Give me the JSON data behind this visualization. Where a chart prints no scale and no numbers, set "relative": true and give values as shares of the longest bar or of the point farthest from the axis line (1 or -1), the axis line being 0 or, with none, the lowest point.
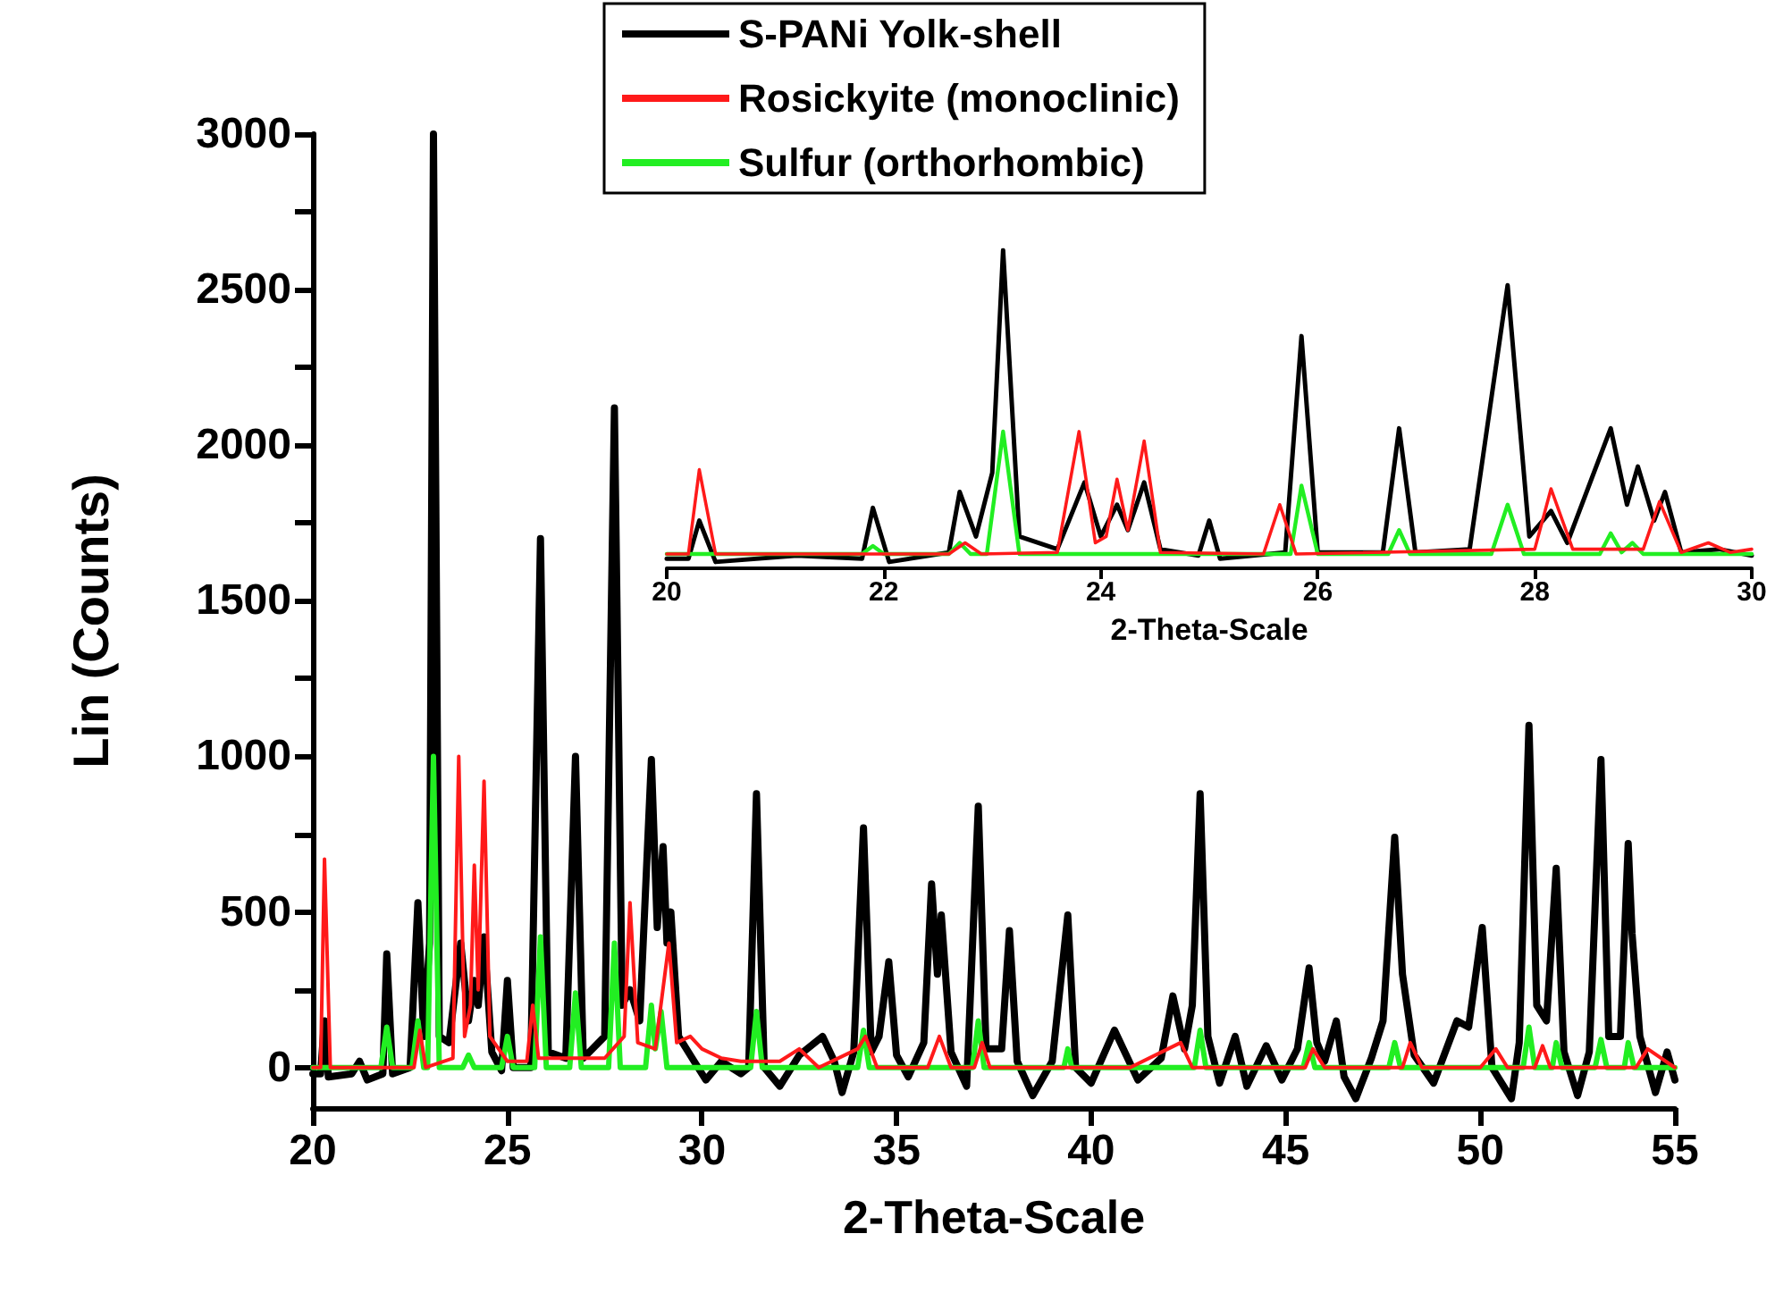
{
  "chart_data": [
    {
      "type": "line",
      "xlabel": "2-Theta-Scale",
      "ylabel": "Lin (Counts)",
      "xlim": [
        20,
        55
      ],
      "xticks": [
        20,
        25,
        30,
        35,
        40,
        45,
        50,
        55
      ],
      "ylim": [
        -130,
        3000
      ],
      "yticks": [
        0,
        {
          "value": 250,
          "label": null
        },
        500,
        {
          "value": 750,
          "label": null
        },
        1000,
        {
          "value": 1250,
          "label": null
        },
        1500,
        {
          "value": 1750,
          "label": null
        },
        2000,
        {
          "value": 2250,
          "label": null
        },
        2500,
        {
          "value": 2750,
          "label": null
        },
        3000
      ],
      "grid": false,
      "legend": "top",
      "marker": "none",
      "line_style": "solid",
      "series": [
        {
          "name": "S-PANi Yolk-shell",
          "color": "#000000",
          "x": [
            20,
            20.2,
            20.3,
            20.4,
            21.0,
            21.2,
            21.4,
            21.8,
            21.9,
            22.05,
            22.5,
            22.7,
            22.85,
            23.0,
            23.1,
            23.25,
            23.5,
            23.8,
            24.0,
            24.15,
            24.25,
            24.4,
            24.6,
            24.85,
            25.0,
            25.15,
            25.6,
            25.85,
            26.05,
            26.5,
            26.75,
            26.95,
            27.5,
            27.75,
            27.95,
            28.15,
            28.4,
            28.7,
            28.85,
            29.0,
            29.1,
            29.2,
            29.4,
            29.8,
            30.1,
            30.5,
            31.0,
            31.2,
            31.4,
            31.6,
            32.0,
            32.5,
            33.1,
            33.4,
            33.6,
            33.9,
            34.15,
            34.35,
            34.55,
            34.8,
            35.0,
            35.3,
            35.7,
            35.9,
            36.05,
            36.15,
            36.4,
            36.8,
            37.1,
            37.3,
            37.7,
            37.9,
            38.1,
            38.5,
            39.0,
            39.4,
            39.6,
            40.0,
            40.6,
            40.9,
            41.2,
            41.8,
            42.1,
            42.4,
            42.6,
            42.8,
            43.0,
            43.3,
            43.7,
            44.0,
            44.5,
            44.9,
            45.3,
            45.6,
            45.8,
            46.0,
            46.3,
            46.5,
            46.8,
            47.2,
            47.5,
            47.8,
            48.0,
            48.3,
            48.8,
            49.4,
            49.7,
            50.05,
            50.3,
            50.8,
            51.0,
            51.25,
            51.45,
            51.7,
            51.95,
            52.15,
            52.5,
            52.8,
            53.1,
            53.3,
            53.6,
            53.8,
            53.9,
            54.1,
            54.5,
            54.8,
            55
          ],
          "values": [
            -20,
            -20,
            150,
            -30,
            -20,
            20,
            -40,
            -20,
            365,
            -20,
            0,
            530,
            100,
            400,
            3000,
            100,
            80,
            400,
            150,
            280,
            200,
            420,
            50,
            -10,
            280,
            0,
            0,
            1700,
            50,
            30,
            1000,
            30,
            100,
            2120,
            200,
            250,
            150,
            990,
            450,
            710,
            400,
            500,
            100,
            20,
            -40,
            20,
            -20,
            0,
            880,
            0,
            -60,
            40,
            100,
            20,
            -80,
            50,
            770,
            50,
            100,
            340,
            40,
            -30,
            80,
            590,
            300,
            490,
            50,
            -60,
            840,
            60,
            60,
            440,
            20,
            -90,
            20,
            490,
            0,
            -50,
            120,
            40,
            -40,
            30,
            230,
            60,
            200,
            880,
            100,
            -50,
            100,
            -60,
            70,
            -40,
            60,
            320,
            80,
            20,
            150,
            -30,
            -100,
            30,
            150,
            740,
            300,
            40,
            -50,
            150,
            130,
            450,
            0,
            -100,
            80,
            1100,
            200,
            150,
            640,
            50,
            -90,
            50,
            990,
            100,
            100,
            720,
            430,
            100,
            -80,
            50,
            -40
          ]
        },
        {
          "name": "Rosickyite (monoclinic)",
          "color": "#ff1a1a",
          "x": [
            20,
            20.2,
            20.3,
            20.45,
            22.6,
            22.75,
            22.9,
            23.6,
            23.75,
            23.9,
            24.05,
            24.15,
            24.25,
            24.4,
            24.55,
            25.0,
            25.5,
            25.65,
            25.8,
            27.5,
            28.0,
            28.15,
            28.35,
            28.8,
            29.15,
            29.35,
            29.7,
            30.0,
            30.5,
            31.0,
            32.0,
            32.5,
            33.0,
            34.0,
            34.2,
            34.5,
            35.8,
            36.1,
            36.4,
            37.0,
            37.2,
            37.4,
            41.0,
            42.3,
            42.6,
            45.5,
            45.7,
            46.0,
            48.0,
            48.2,
            48.5,
            50.0,
            50.4,
            50.7,
            51.4,
            51.6,
            51.8,
            54.0,
            54.3,
            55
          ],
          "values": [
            0,
            0,
            670,
            0,
            0,
            120,
            0,
            30,
            1000,
            100,
            200,
            650,
            250,
            920,
            100,
            20,
            20,
            200,
            30,
            30,
            100,
            530,
            80,
            60,
            400,
            80,
            100,
            60,
            30,
            20,
            20,
            60,
            0,
            60,
            100,
            0,
            0,
            100,
            0,
            0,
            80,
            0,
            0,
            80,
            0,
            0,
            60,
            0,
            0,
            80,
            0,
            0,
            60,
            0,
            0,
            70,
            0,
            0,
            60,
            0
          ]
        },
        {
          "name": "Sulfur (orthorhombic)",
          "color": "#22ee22",
          "x": [
            20,
            21.75,
            21.9,
            22.05,
            22.55,
            22.7,
            22.85,
            22.95,
            23.1,
            23.25,
            23.85,
            24.0,
            24.15,
            24.85,
            25.0,
            25.15,
            25.7,
            25.85,
            26.0,
            26.6,
            26.75,
            26.9,
            27.6,
            27.75,
            27.9,
            28.55,
            28.7,
            28.8,
            28.95,
            29.1,
            31.25,
            31.4,
            31.55,
            34.0,
            34.15,
            34.3,
            36.95,
            37.1,
            37.25,
            39.3,
            39.4,
            39.5,
            42.65,
            42.8,
            42.95,
            45.45,
            45.6,
            45.75,
            47.65,
            47.8,
            47.95,
            51.1,
            51.25,
            51.4,
            51.85,
            51.95,
            52.1,
            52.95,
            53.1,
            53.25,
            53.7,
            53.8,
            53.95,
            55
          ],
          "values": [
            0,
            0,
            130,
            0,
            0,
            150,
            0,
            0,
            1000,
            0,
            0,
            40,
            0,
            0,
            100,
            0,
            0,
            420,
            0,
            0,
            240,
            0,
            0,
            400,
            0,
            0,
            200,
            60,
            180,
            0,
            0,
            180,
            0,
            0,
            120,
            0,
            0,
            150,
            0,
            0,
            60,
            0,
            0,
            120,
            0,
            0,
            80,
            0,
            0,
            80,
            0,
            0,
            130,
            0,
            0,
            80,
            0,
            0,
            90,
            0,
            0,
            80,
            0,
            0
          ]
        }
      ]
    },
    {
      "type": "line",
      "xlabel": "2-Theta-Scale",
      "xlim": [
        20,
        30
      ],
      "xticks": [
        20,
        22,
        24,
        26,
        28,
        30
      ],
      "relative": true,
      "grid": false,
      "legend": false,
      "marker": "none",
      "line_style": "solid",
      "series": [
        {
          "color": "#000000",
          "x": [
            20,
            20.2,
            20.3,
            20.45,
            21.2,
            21.8,
            21.9,
            22.05,
            22.6,
            22.7,
            22.85,
            23.0,
            23.1,
            23.25,
            23.6,
            23.85,
            24.0,
            24.15,
            24.25,
            24.4,
            24.55,
            24.9,
            25.0,
            25.1,
            25.7,
            25.85,
            26.0,
            26.6,
            26.75,
            26.9,
            27.4,
            27.75,
            27.95,
            28.15,
            28.3,
            28.7,
            28.85,
            28.95,
            29.1,
            29.2,
            29.35,
            29.7,
            30
          ],
          "values": [
            0.03,
            0.03,
            0.15,
            0.02,
            0.04,
            0.03,
            0.19,
            0.02,
            0.05,
            0.24,
            0.1,
            0.3,
            1,
            0.1,
            0.06,
            0.27,
            0.1,
            0.2,
            0.12,
            0.27,
            0.06,
            0.04,
            0.15,
            0.03,
            0.05,
            0.73,
            0.05,
            0.05,
            0.44,
            0.05,
            0.06,
            0.89,
            0.1,
            0.18,
            0.08,
            0.44,
            0.2,
            0.32,
            0.15,
            0.24,
            0.05,
            0.06,
            0.04
          ]
        },
        {
          "color": "#ff1a1a",
          "x": [
            20,
            20.2,
            20.3,
            20.45,
            22.6,
            22.75,
            22.9,
            23.6,
            23.8,
            23.95,
            24.05,
            24.15,
            24.25,
            24.4,
            24.55,
            25.5,
            25.65,
            25.8,
            28.0,
            28.15,
            28.35,
            29.0,
            29.15,
            29.35,
            29.6,
            29.8,
            30
          ],
          "values": [
            0.045,
            0.045,
            0.31,
            0.045,
            0.045,
            0.08,
            0.045,
            0.05,
            0.43,
            0.08,
            0.1,
            0.28,
            0.12,
            0.4,
            0.05,
            0.045,
            0.2,
            0.045,
            0.06,
            0.25,
            0.06,
            0.06,
            0.21,
            0.05,
            0.08,
            0.05,
            0.06
          ]
        },
        {
          "color": "#22ee22",
          "x": [
            20,
            21.8,
            21.9,
            22.0,
            22.6,
            22.7,
            22.8,
            22.95,
            23.1,
            23.25,
            25.75,
            25.85,
            26.0,
            26.65,
            26.75,
            26.85,
            27.6,
            27.75,
            27.9,
            28.6,
            28.7,
            28.8,
            28.9,
            29.0,
            30
          ],
          "values": [
            0.045,
            0.045,
            0.07,
            0.045,
            0.045,
            0.08,
            0.045,
            0.045,
            0.43,
            0.045,
            0.045,
            0.26,
            0.045,
            0.045,
            0.12,
            0.045,
            0.045,
            0.2,
            0.045,
            0.045,
            0.11,
            0.05,
            0.08,
            0.045,
            0.045
          ]
        }
      ]
    }
  ]
}
